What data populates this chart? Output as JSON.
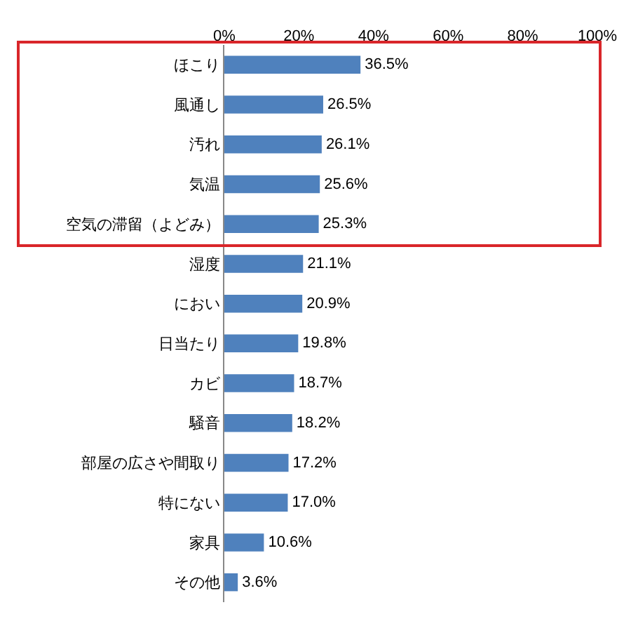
{
  "chart_data": {
    "type": "bar",
    "orientation": "horizontal",
    "categories": [
      "ほこり",
      "風通し",
      "汚れ",
      "気温",
      "空気の滞留（よどみ）",
      "湿度",
      "におい",
      "日当たり",
      "カビ",
      "騒音",
      "部屋の広さや間取り",
      "特にない",
      "家具",
      "その他"
    ],
    "values": [
      36.5,
      26.5,
      26.1,
      25.6,
      25.3,
      21.1,
      20.9,
      19.8,
      18.7,
      18.2,
      17.2,
      17.0,
      10.6,
      3.6
    ],
    "value_labels": [
      "36.5%",
      "26.5%",
      "26.1%",
      "25.6%",
      "25.3%",
      "21.1%",
      "20.9%",
      "19.8%",
      "18.7%",
      "18.2%",
      "17.2%",
      "17.0%",
      "10.6%",
      "3.6%"
    ],
    "color": "#4f81bd",
    "xlim": [
      0,
      100
    ],
    "xticks": [
      {
        "value": 0,
        "label": "0%"
      },
      {
        "value": 20,
        "label": "20%"
      },
      {
        "value": 40,
        "label": "40%"
      },
      {
        "value": 60,
        "label": "60%"
      },
      {
        "value": 80,
        "label": "80%"
      },
      {
        "value": 100,
        "label": "100%"
      }
    ],
    "grid": false
  }
}
